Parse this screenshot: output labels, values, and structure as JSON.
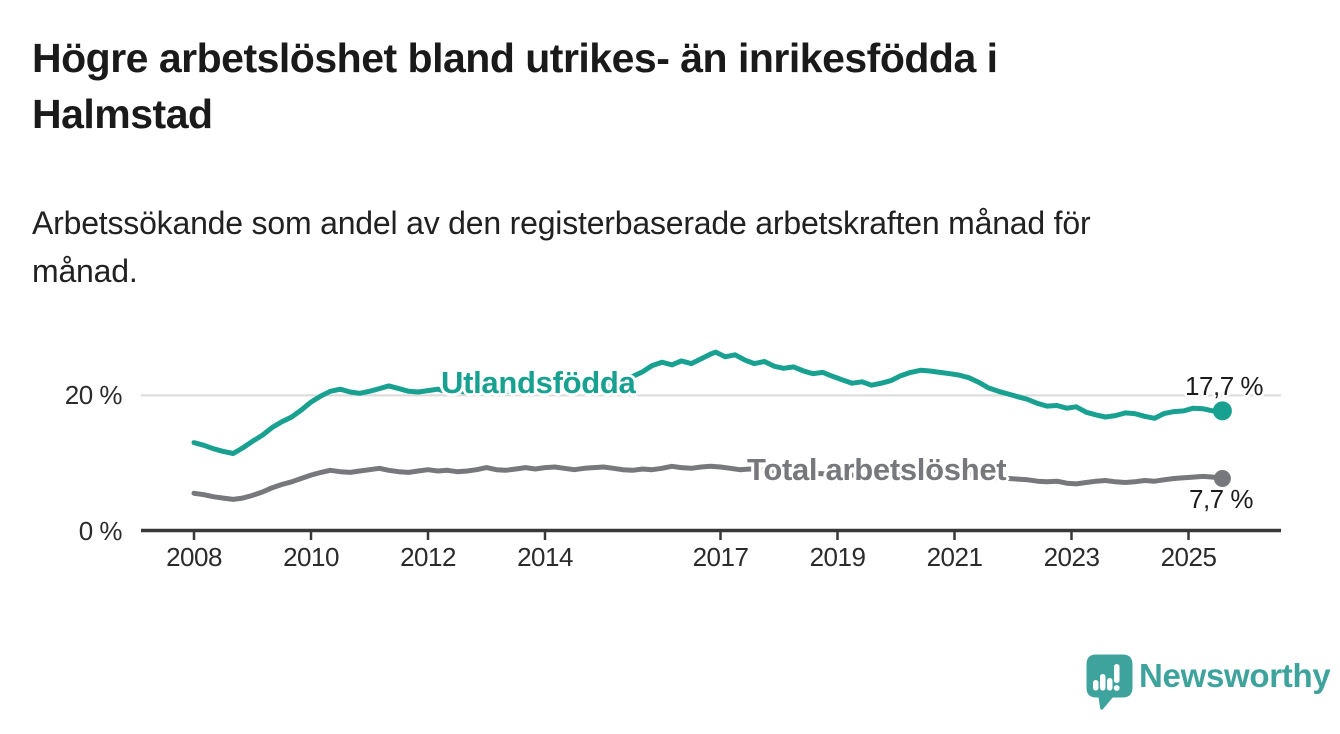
{
  "header": {
    "title_lines": [
      "Högre arbetslöshet bland utrikes- än inrikesfödda i",
      "Halmstad"
    ],
    "subtitle_lines": [
      "Arbetssökande som andel av den registerbaserade arbetskraften månad för",
      "månad."
    ]
  },
  "footer": {
    "brand": "Newsworthy",
    "brand_color": "#3FA39D",
    "logo_icon": "speech-bubble-bar-chart-icon"
  },
  "chart_data": {
    "type": "line",
    "title": "Högre arbetslöshet bland utrikes- än inrikesfödda i Halmstad",
    "subtitle": "Arbetssökande som andel av den registerbaserade arbetskraften månad för månad.",
    "unit": "%",
    "grid": "horizontal-only",
    "legend_position": "inline-labels",
    "x_axis": {
      "ticks": [
        2008,
        2010,
        2012,
        2014,
        2017,
        2019,
        2021,
        2023,
        2025
      ],
      "range": [
        2007.1,
        2026.5
      ]
    },
    "y_axis": {
      "ticks": [
        {
          "value": 0,
          "label": "0 %"
        },
        {
          "value": 20,
          "label": "20 %"
        }
      ],
      "range": [
        0,
        27.5
      ],
      "gridline_color": "#DADADA",
      "axis_color": "#383838"
    },
    "series": [
      {
        "name": "Utlandsfödda",
        "color": "#18A091",
        "end_label": "17,7 %",
        "end_value": 17.7,
        "points": [
          [
            2008.0,
            13.0
          ],
          [
            2008.17,
            12.6
          ],
          [
            2008.33,
            12.1
          ],
          [
            2008.5,
            11.7
          ],
          [
            2008.67,
            11.4
          ],
          [
            2008.83,
            12.2
          ],
          [
            2009.0,
            13.2
          ],
          [
            2009.17,
            14.1
          ],
          [
            2009.33,
            15.2
          ],
          [
            2009.5,
            16.1
          ],
          [
            2009.67,
            16.8
          ],
          [
            2009.83,
            17.8
          ],
          [
            2010.0,
            19.0
          ],
          [
            2010.17,
            19.9
          ],
          [
            2010.33,
            20.6
          ],
          [
            2010.5,
            20.9
          ],
          [
            2010.67,
            20.5
          ],
          [
            2010.83,
            20.3
          ],
          [
            2011.0,
            20.6
          ],
          [
            2011.17,
            21.0
          ],
          [
            2011.33,
            21.4
          ],
          [
            2011.5,
            21.0
          ],
          [
            2011.67,
            20.6
          ],
          [
            2011.83,
            20.5
          ],
          [
            2012.0,
            20.7
          ],
          [
            2012.17,
            20.9
          ],
          [
            2012.33,
            20.5
          ],
          [
            2012.5,
            20.7
          ],
          [
            2012.67,
            20.4
          ],
          [
            2012.83,
            20.8
          ],
          [
            2013.0,
            21.1
          ],
          [
            2013.17,
            20.9
          ],
          [
            2013.33,
            20.6
          ],
          [
            2013.5,
            20.8
          ],
          [
            2013.67,
            21.0
          ],
          [
            2013.83,
            20.7
          ],
          [
            2014.0,
            21.1
          ],
          [
            2014.17,
            21.3
          ],
          [
            2014.33,
            21.0
          ],
          [
            2014.5,
            20.8
          ],
          [
            2014.67,
            21.1
          ],
          [
            2014.83,
            21.2
          ],
          [
            2015.0,
            21.4
          ],
          [
            2015.17,
            21.7
          ],
          [
            2015.33,
            22.1
          ],
          [
            2015.5,
            22.8
          ],
          [
            2015.67,
            23.5
          ],
          [
            2015.83,
            24.4
          ],
          [
            2016.0,
            24.9
          ],
          [
            2016.17,
            24.5
          ],
          [
            2016.33,
            25.1
          ],
          [
            2016.5,
            24.7
          ],
          [
            2016.67,
            25.4
          ],
          [
            2016.83,
            26.1
          ],
          [
            2016.92,
            26.4
          ],
          [
            2017.08,
            25.7
          ],
          [
            2017.25,
            26.0
          ],
          [
            2017.42,
            25.2
          ],
          [
            2017.58,
            24.7
          ],
          [
            2017.75,
            25.0
          ],
          [
            2017.92,
            24.3
          ],
          [
            2018.08,
            24.0
          ],
          [
            2018.25,
            24.2
          ],
          [
            2018.42,
            23.6
          ],
          [
            2018.58,
            23.2
          ],
          [
            2018.75,
            23.4
          ],
          [
            2018.92,
            22.8
          ],
          [
            2019.08,
            22.3
          ],
          [
            2019.25,
            21.8
          ],
          [
            2019.42,
            22.0
          ],
          [
            2019.58,
            21.5
          ],
          [
            2019.75,
            21.8
          ],
          [
            2019.92,
            22.2
          ],
          [
            2020.08,
            22.9
          ],
          [
            2020.25,
            23.4
          ],
          [
            2020.42,
            23.7
          ],
          [
            2020.58,
            23.6
          ],
          [
            2020.75,
            23.4
          ],
          [
            2020.92,
            23.2
          ],
          [
            2021.08,
            23.0
          ],
          [
            2021.25,
            22.6
          ],
          [
            2021.42,
            21.9
          ],
          [
            2021.58,
            21.1
          ],
          [
            2021.75,
            20.6
          ],
          [
            2021.92,
            20.2
          ],
          [
            2022.08,
            19.8
          ],
          [
            2022.25,
            19.4
          ],
          [
            2022.42,
            18.8
          ],
          [
            2022.58,
            18.4
          ],
          [
            2022.75,
            18.5
          ],
          [
            2022.92,
            18.1
          ],
          [
            2023.08,
            18.3
          ],
          [
            2023.25,
            17.5
          ],
          [
            2023.42,
            17.1
          ],
          [
            2023.58,
            16.8
          ],
          [
            2023.75,
            17.0
          ],
          [
            2023.92,
            17.4
          ],
          [
            2024.08,
            17.3
          ],
          [
            2024.25,
            16.9
          ],
          [
            2024.42,
            16.6
          ],
          [
            2024.58,
            17.3
          ],
          [
            2024.75,
            17.6
          ],
          [
            2024.92,
            17.7
          ],
          [
            2025.08,
            18.1
          ],
          [
            2025.25,
            18.0
          ],
          [
            2025.42,
            17.7
          ],
          [
            2025.58,
            17.7
          ]
        ]
      },
      {
        "name": "Total arbetslöshet",
        "color": "#77787C",
        "end_label": "7,7 %",
        "end_value": 7.7,
        "points": [
          [
            2008.0,
            5.5
          ],
          [
            2008.17,
            5.3
          ],
          [
            2008.33,
            5.0
          ],
          [
            2008.5,
            4.8
          ],
          [
            2008.67,
            4.6
          ],
          [
            2008.83,
            4.8
          ],
          [
            2009.0,
            5.2
          ],
          [
            2009.17,
            5.7
          ],
          [
            2009.33,
            6.3
          ],
          [
            2009.5,
            6.8
          ],
          [
            2009.67,
            7.2
          ],
          [
            2009.83,
            7.7
          ],
          [
            2010.0,
            8.2
          ],
          [
            2010.17,
            8.6
          ],
          [
            2010.33,
            8.9
          ],
          [
            2010.5,
            8.7
          ],
          [
            2010.67,
            8.6
          ],
          [
            2010.83,
            8.8
          ],
          [
            2011.0,
            9.0
          ],
          [
            2011.17,
            9.2
          ],
          [
            2011.33,
            8.9
          ],
          [
            2011.5,
            8.7
          ],
          [
            2011.67,
            8.6
          ],
          [
            2011.83,
            8.8
          ],
          [
            2012.0,
            9.0
          ],
          [
            2012.17,
            8.8
          ],
          [
            2012.33,
            8.9
          ],
          [
            2012.5,
            8.7
          ],
          [
            2012.67,
            8.8
          ],
          [
            2012.83,
            9.0
          ],
          [
            2013.0,
            9.3
          ],
          [
            2013.17,
            9.0
          ],
          [
            2013.33,
            8.9
          ],
          [
            2013.5,
            9.1
          ],
          [
            2013.67,
            9.3
          ],
          [
            2013.83,
            9.1
          ],
          [
            2014.0,
            9.3
          ],
          [
            2014.17,
            9.4
          ],
          [
            2014.33,
            9.2
          ],
          [
            2014.5,
            9.0
          ],
          [
            2014.67,
            9.2
          ],
          [
            2014.83,
            9.3
          ],
          [
            2015.0,
            9.4
          ],
          [
            2015.17,
            9.2
          ],
          [
            2015.33,
            9.0
          ],
          [
            2015.5,
            8.9
          ],
          [
            2015.67,
            9.1
          ],
          [
            2015.83,
            9.0
          ],
          [
            2016.0,
            9.2
          ],
          [
            2016.17,
            9.5
          ],
          [
            2016.33,
            9.3
          ],
          [
            2016.5,
            9.2
          ],
          [
            2016.67,
            9.4
          ],
          [
            2016.83,
            9.5
          ],
          [
            2017.0,
            9.4
          ],
          [
            2017.17,
            9.2
          ],
          [
            2017.33,
            9.0
          ],
          [
            2017.5,
            9.1
          ],
          [
            2017.75,
            8.9
          ],
          [
            2018.0,
            8.8
          ],
          [
            2018.25,
            8.6
          ],
          [
            2018.5,
            8.5
          ],
          [
            2018.75,
            8.4
          ],
          [
            2019.0,
            8.3
          ],
          [
            2019.25,
            8.2
          ],
          [
            2019.5,
            8.1
          ],
          [
            2019.75,
            8.2
          ],
          [
            2020.0,
            8.5
          ],
          [
            2020.25,
            8.9
          ],
          [
            2020.5,
            9.1
          ],
          [
            2020.75,
            8.9
          ],
          [
            2021.0,
            8.6
          ],
          [
            2021.25,
            8.3
          ],
          [
            2021.5,
            8.0
          ],
          [
            2021.75,
            7.8
          ],
          [
            2021.92,
            7.7
          ],
          [
            2022.08,
            7.6
          ],
          [
            2022.25,
            7.5
          ],
          [
            2022.42,
            7.3
          ],
          [
            2022.58,
            7.2
          ],
          [
            2022.75,
            7.3
          ],
          [
            2022.92,
            7.0
          ],
          [
            2023.08,
            6.9
          ],
          [
            2023.25,
            7.1
          ],
          [
            2023.42,
            7.3
          ],
          [
            2023.58,
            7.4
          ],
          [
            2023.75,
            7.2
          ],
          [
            2023.92,
            7.1
          ],
          [
            2024.08,
            7.2
          ],
          [
            2024.25,
            7.4
          ],
          [
            2024.42,
            7.3
          ],
          [
            2024.58,
            7.5
          ],
          [
            2024.75,
            7.7
          ],
          [
            2024.92,
            7.8
          ],
          [
            2025.08,
            7.9
          ],
          [
            2025.25,
            8.0
          ],
          [
            2025.42,
            7.9
          ],
          [
            2025.58,
            7.7
          ]
        ]
      }
    ]
  }
}
